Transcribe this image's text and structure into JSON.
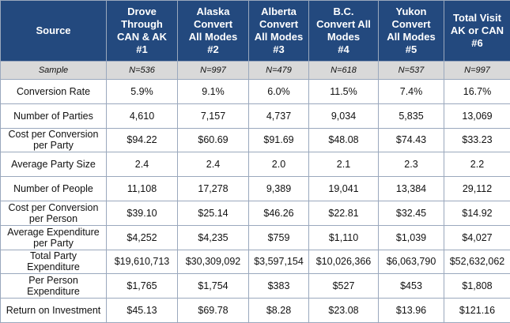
{
  "table": {
    "headers": [
      "Source",
      "Drove\nThrough\nCAN & AK\n#1",
      "Alaska\nConvert\nAll Modes\n#2",
      "Alberta\nConvert\nAll Modes\n#3",
      "B.C.\nConvert All\nModes\n#4",
      "Yukon\nConvert\nAll Modes\n#5",
      "Total Visit\nAK or CAN\n#6"
    ],
    "sample": [
      "Sample",
      "N=536",
      "N=997",
      "N=479",
      "N=618",
      "N=537",
      "N=997"
    ],
    "rows": [
      [
        "Conversion Rate",
        "5.9%",
        "9.1%",
        "6.0%",
        "11.5%",
        "7.4%",
        "16.7%"
      ],
      [
        "Number of Parties",
        "4,610",
        "7,157",
        "4,737",
        "9,034",
        "5,835",
        "13,069"
      ],
      [
        "Cost per Conversion per Party",
        "$94.22",
        "$60.69",
        "$91.69",
        "$48.08",
        "$74.43",
        "$33.23"
      ],
      [
        "Average Party Size",
        "2.4",
        "2.4",
        "2.0",
        "2.1",
        "2.3",
        "2.2"
      ],
      [
        "Number of People",
        "11,108",
        "17,278",
        "9,389",
        "19,041",
        "13,384",
        "29,112"
      ],
      [
        "Cost per Conversion per Person",
        "$39.10",
        "$25.14",
        "$46.26",
        "$22.81",
        "$32.45",
        "$14.92"
      ],
      [
        "Average Expenditure per Party",
        "$4,252",
        "$4,235",
        "$759",
        "$1,110",
        "$1,039",
        "$4,027"
      ],
      [
        "Total Party Expenditure",
        "$19,610,713",
        "$30,309,092",
        "$3,597,154",
        "$10,026,366",
        "$6,063,790",
        "$52,632,062"
      ],
      [
        "Per Person Expenditure",
        "$1,765",
        "$1,754",
        "$383",
        "$527",
        "$453",
        "$1,808"
      ],
      [
        "Return on Investment",
        "$45.13",
        "$69.78",
        "$8.28",
        "$23.08",
        "$13.96",
        "$121.16"
      ]
    ]
  },
  "colors": {
    "header_bg": "#23497e",
    "header_text": "#ffffff",
    "sample_bg": "#d9d9d9",
    "border": "#9aa8bd"
  }
}
